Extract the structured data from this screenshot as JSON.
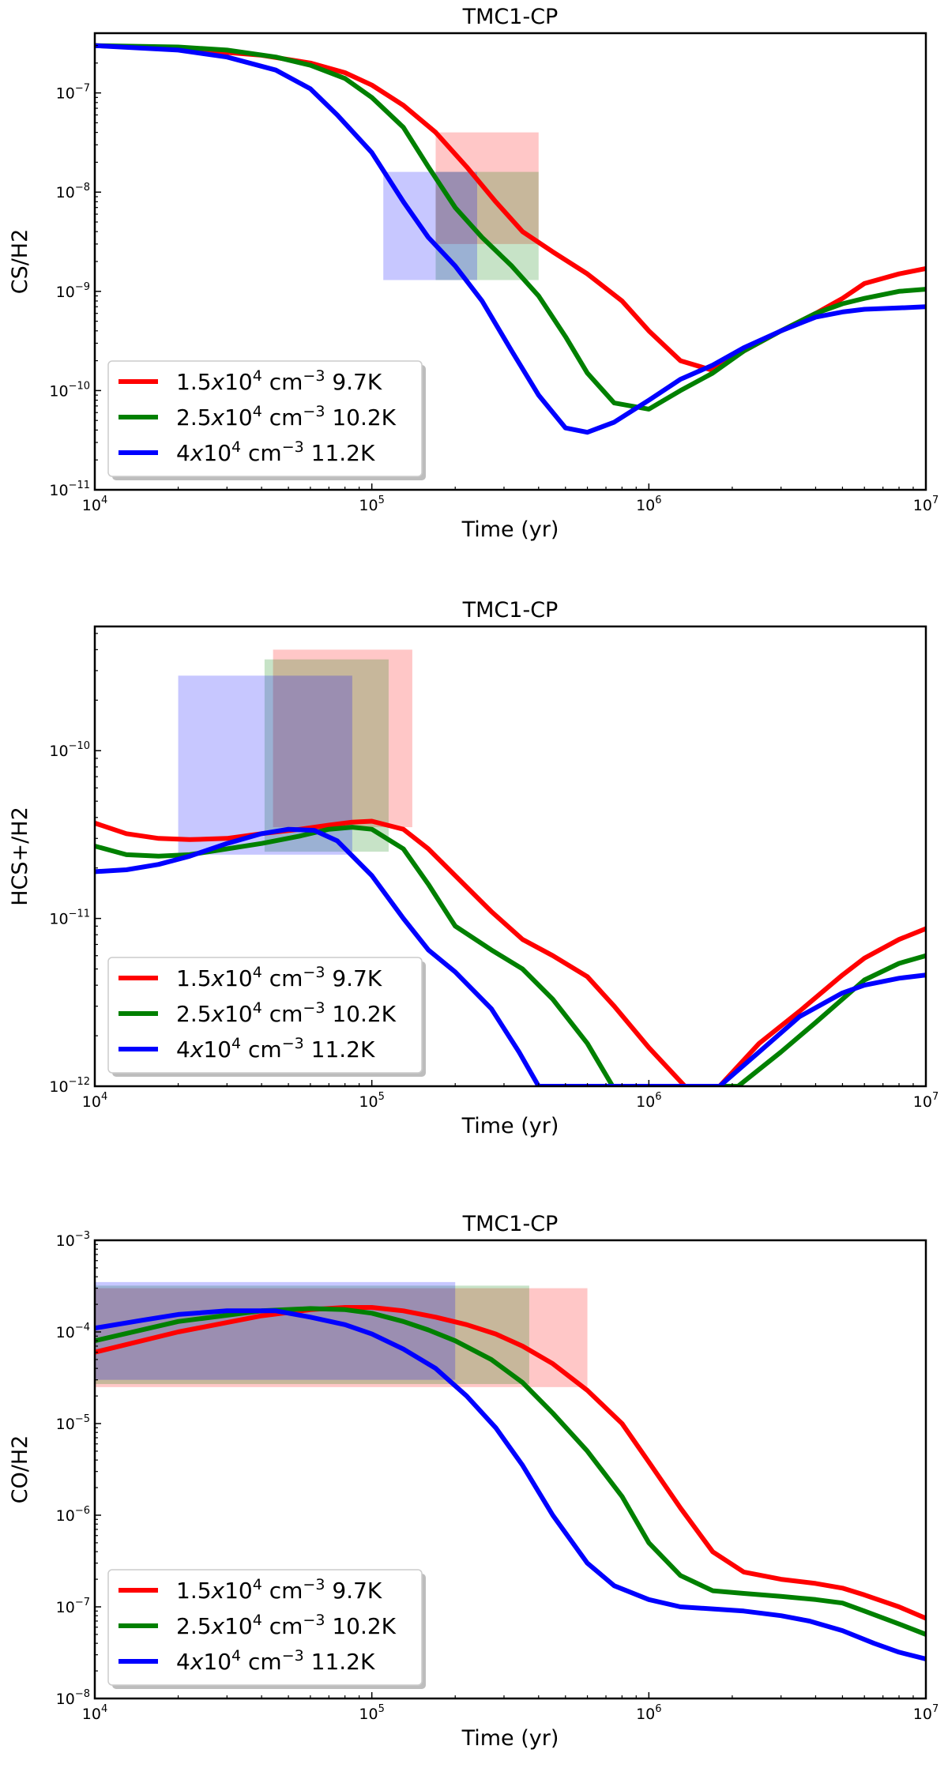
{
  "chart_data": [
    {
      "type": "line",
      "title": "TMC1-CP",
      "xlabel": "Time (yr)",
      "ylabel": "CS/H2",
      "xscale": "log",
      "yscale": "log",
      "xlim": [
        10000,
        10000000
      ],
      "ylim": [
        1e-11,
        4e-07
      ],
      "x_ticks": [
        {
          "base": "10",
          "exp": "4"
        },
        {
          "base": "10",
          "exp": "5"
        },
        {
          "base": "10",
          "exp": "6"
        },
        {
          "base": "10",
          "exp": "7"
        }
      ],
      "y_ticks": [
        {
          "v": 1e-11,
          "base": "10",
          "exp": "−11"
        },
        {
          "v": 1e-10,
          "base": "10",
          "exp": "−10"
        },
        {
          "v": 1e-09,
          "base": "10",
          "exp": "−9"
        },
        {
          "v": 1e-08,
          "base": "10",
          "exp": "−8"
        },
        {
          "v": 1e-07,
          "base": "10",
          "exp": "−7"
        }
      ],
      "legend_position": "lower-left",
      "grid": false,
      "series": [
        {
          "name": "1.5x10^4 cm^-3 9.7K",
          "color": "#ff0000",
          "x": [
            10000,
            20000,
            40000,
            60000,
            80000,
            100000,
            130000,
            170000,
            220000,
            280000,
            350000,
            450000,
            600000,
            800000,
            1000000,
            1300000,
            1700000,
            2200000,
            3000000,
            4000000,
            5000000,
            6000000,
            8000000,
            10000000
          ],
          "y": [
            3e-07,
            2.8e-07,
            2.4e-07,
            2e-07,
            1.6e-07,
            1.2e-07,
            7.5e-08,
            4e-08,
            1.8e-08,
            8e-09,
            4e-09,
            2.5e-09,
            1.5e-09,
            8e-10,
            4e-10,
            2e-10,
            1.6e-10,
            2.5e-10,
            4e-10,
            6e-10,
            8.5e-10,
            1.2e-09,
            1.5e-09,
            1.7e-09
          ]
        },
        {
          "name": "2.5x10^4 cm^-3 10.2K",
          "color": "#008000",
          "x": [
            10000,
            20000,
            30000,
            45000,
            60000,
            80000,
            100000,
            130000,
            160000,
            200000,
            250000,
            320000,
            400000,
            500000,
            600000,
            750000,
            1000000,
            1300000,
            1700000,
            2200000,
            3000000,
            4000000,
            5000000,
            6000000,
            8000000,
            10000000
          ],
          "y": [
            3e-07,
            2.9e-07,
            2.7e-07,
            2.3e-07,
            1.9e-07,
            1.4e-07,
            9e-08,
            4.5e-08,
            1.8e-08,
            7e-09,
            3.5e-09,
            1.8e-09,
            9e-10,
            3.5e-10,
            1.5e-10,
            7.5e-11,
            6.5e-11,
            1e-10,
            1.5e-10,
            2.5e-10,
            4e-10,
            6e-10,
            7.5e-10,
            8.5e-10,
            1e-09,
            1.05e-09
          ]
        },
        {
          "name": "4x10^4 cm^-3 11.2K",
          "color": "#0000ff",
          "x": [
            10000,
            20000,
            30000,
            45000,
            60000,
            75000,
            100000,
            130000,
            160000,
            200000,
            250000,
            320000,
            400000,
            500000,
            600000,
            750000,
            1000000,
            1300000,
            1700000,
            2200000,
            3000000,
            4000000,
            5000000,
            6000000,
            8000000,
            10000000
          ],
          "y": [
            3e-07,
            2.7e-07,
            2.3e-07,
            1.7e-07,
            1.1e-07,
            6e-08,
            2.5e-08,
            8e-09,
            3.5e-09,
            1.8e-09,
            8e-10,
            2.5e-10,
            9e-11,
            4.2e-11,
            3.8e-11,
            4.8e-11,
            8e-11,
            1.3e-10,
            1.8e-10,
            2.7e-10,
            4e-10,
            5.5e-10,
            6.2e-10,
            6.6e-10,
            6.8e-10,
            7e-10
          ]
        }
      ],
      "ranges": [
        {
          "series": "1.5x10^4 cm^-3 9.7K",
          "color": "#ff0000",
          "x": [
            170000,
            400000
          ],
          "y": [
            3e-09,
            4e-08
          ]
        },
        {
          "series": "2.5x10^4 cm^-3 10.2K",
          "color": "#008000",
          "x": [
            170000,
            400000
          ],
          "y": [
            1.3e-09,
            1.6e-08
          ]
        },
        {
          "series": "4x10^4 cm^-3 11.2K",
          "color": "#0000ff",
          "x": [
            110000,
            240000
          ],
          "y": [
            1.3e-09,
            1.6e-08
          ]
        }
      ]
    },
    {
      "type": "line",
      "title": "TMC1-CP",
      "xlabel": "Time (yr)",
      "ylabel": "HCS+/H2",
      "xscale": "log",
      "yscale": "log",
      "xlim": [
        10000,
        10000000
      ],
      "ylim": [
        1e-12,
        5.5e-10
      ],
      "x_ticks": [
        {
          "base": "10",
          "exp": "4"
        },
        {
          "base": "10",
          "exp": "5"
        },
        {
          "base": "10",
          "exp": "6"
        },
        {
          "base": "10",
          "exp": "7"
        }
      ],
      "y_ticks": [
        {
          "v": 1e-12,
          "base": "10",
          "exp": "−12"
        },
        {
          "v": 1e-11,
          "base": "10",
          "exp": "−11"
        },
        {
          "v": 1e-10,
          "base": "10",
          "exp": "−10"
        }
      ],
      "legend_position": "lower-left",
      "grid": false,
      "series": [
        {
          "name": "1.5x10^4 cm^-3 9.7K",
          "color": "#ff0000",
          "x": [
            10000,
            13000,
            17000,
            22000,
            30000,
            40000,
            55000,
            70000,
            85000,
            100000,
            130000,
            160000,
            200000,
            270000,
            350000,
            450000,
            600000,
            750000,
            1000000,
            1350000,
            1800000,
            2500000,
            3500000,
            5000000,
            6000000,
            8000000,
            10000000
          ],
          "y": [
            3.7e-11,
            3.2e-11,
            3e-11,
            2.95e-11,
            3e-11,
            3.2e-11,
            3.4e-11,
            3.6e-11,
            3.75e-11,
            3.8e-11,
            3.4e-11,
            2.6e-11,
            1.8e-11,
            1.1e-11,
            7.5e-12,
            6e-12,
            4.5e-12,
            3e-12,
            1.7e-12,
            1e-12,
            1e-12,
            1.8e-12,
            2.8e-12,
            4.6e-12,
            5.8e-12,
            7.5e-12,
            8.7e-12
          ]
        },
        {
          "name": "2.5x10^4 cm^-3 10.2K",
          "color": "#008000",
          "x": [
            10000,
            13000,
            17000,
            22000,
            30000,
            40000,
            55000,
            70000,
            85000,
            100000,
            130000,
            160000,
            200000,
            270000,
            350000,
            450000,
            600000,
            740000,
            2100000,
            3000000,
            4000000,
            6000000,
            8000000,
            10000000
          ],
          "y": [
            2.7e-11,
            2.4e-11,
            2.35e-11,
            2.4e-11,
            2.6e-11,
            2.8e-11,
            3.1e-11,
            3.4e-11,
            3.5e-11,
            3.4e-11,
            2.6e-11,
            1.6e-11,
            9e-12,
            6.5e-12,
            5e-12,
            3.3e-12,
            1.8e-12,
            1e-12,
            1e-12,
            1.6e-12,
            2.4e-12,
            4.3e-12,
            5.4e-12,
            6e-12
          ]
        },
        {
          "name": "4x10^4 cm^-3 11.2K",
          "color": "#0000ff",
          "x": [
            10000,
            13000,
            17000,
            22000,
            30000,
            40000,
            50000,
            62000,
            75000,
            100000,
            130000,
            160000,
            200000,
            270000,
            340000,
            400000,
            1800000,
            2500000,
            3500000,
            5000000,
            6000000,
            8000000,
            10000000
          ],
          "y": [
            1.9e-11,
            1.95e-11,
            2.1e-11,
            2.35e-11,
            2.8e-11,
            3.2e-11,
            3.4e-11,
            3.35e-11,
            2.9e-11,
            1.8e-11,
            1e-11,
            6.5e-12,
            4.8e-12,
            2.9e-12,
            1.6e-12,
            1e-12,
            1e-12,
            1.6e-12,
            2.6e-12,
            3.6e-12,
            4e-12,
            4.4e-12,
            4.6e-12
          ]
        }
      ],
      "ranges": [
        {
          "series": "1.5x10^4 cm^-3 9.7K",
          "color": "#ff0000",
          "x": [
            44000,
            140000
          ],
          "y": [
            3.5e-11,
            4e-10
          ]
        },
        {
          "series": "2.5x10^4 cm^-3 10.2K",
          "color": "#008000",
          "x": [
            41000,
            115000
          ],
          "y": [
            2.5e-11,
            3.5e-10
          ]
        },
        {
          "series": "4x10^4 cm^-3 11.2K",
          "color": "#0000ff",
          "x": [
            20000,
            85000
          ],
          "y": [
            2.4e-11,
            2.8e-10
          ]
        }
      ]
    },
    {
      "type": "line",
      "title": "TMC1-CP",
      "xlabel": "Time (yr)",
      "ylabel": "CO/H2",
      "xscale": "log",
      "yscale": "log",
      "xlim": [
        10000,
        10000000
      ],
      "ylim": [
        1e-08,
        0.001
      ],
      "x_ticks": [
        {
          "base": "10",
          "exp": "4"
        },
        {
          "base": "10",
          "exp": "5"
        },
        {
          "base": "10",
          "exp": "6"
        },
        {
          "base": "10",
          "exp": "7"
        }
      ],
      "y_ticks": [
        {
          "v": 1e-08,
          "base": "10",
          "exp": "−8"
        },
        {
          "v": 1e-07,
          "base": "10",
          "exp": "−7"
        },
        {
          "v": 1e-06,
          "base": "10",
          "exp": "−6"
        },
        {
          "v": 1e-05,
          "base": "10",
          "exp": "−5"
        },
        {
          "v": 0.0001,
          "base": "10",
          "exp": "−4"
        },
        {
          "v": 0.001,
          "base": "10",
          "exp": "−3"
        }
      ],
      "legend_position": "lower-left",
      "grid": false,
      "series": [
        {
          "name": "1.5x10^4 cm^-3 9.7K",
          "color": "#ff0000",
          "x": [
            10000,
            20000,
            40000,
            60000,
            80000,
            100000,
            130000,
            170000,
            220000,
            280000,
            350000,
            450000,
            600000,
            800000,
            1000000,
            1300000,
            1700000,
            2200000,
            3000000,
            4000000,
            5000000,
            6000000,
            8000000,
            10000000
          ],
          "y": [
            6e-05,
            0.0001,
            0.00015,
            0.000175,
            0.000185,
            0.000185,
            0.00017,
            0.000145,
            0.00012,
            9.5e-05,
            7e-05,
            4.5e-05,
            2.3e-05,
            1e-05,
            3.8e-06,
            1.2e-06,
            4e-07,
            2.4e-07,
            2e-07,
            1.8e-07,
            1.6e-07,
            1.35e-07,
            1e-07,
            7.5e-08
          ]
        },
        {
          "name": "2.5x10^4 cm^-3 10.2K",
          "color": "#008000",
          "x": [
            10000,
            20000,
            40000,
            60000,
            80000,
            100000,
            130000,
            160000,
            200000,
            270000,
            350000,
            450000,
            600000,
            800000,
            1000000,
            1300000,
            1700000,
            2200000,
            3000000,
            4000000,
            5000000,
            6000000,
            8000000,
            10000000
          ],
          "y": [
            8e-05,
            0.00013,
            0.00017,
            0.00018,
            0.000175,
            0.00016,
            0.00013,
            0.000105,
            8e-05,
            5e-05,
            2.8e-05,
            1.3e-05,
            5e-06,
            1.6e-06,
            5e-07,
            2.2e-07,
            1.5e-07,
            1.4e-07,
            1.3e-07,
            1.2e-07,
            1.1e-07,
            9e-08,
            6.5e-08,
            5e-08
          ]
        },
        {
          "name": "4x10^4 cm^-3 11.2K",
          "color": "#0000ff",
          "x": [
            10000,
            15000,
            20000,
            30000,
            45000,
            60000,
            80000,
            100000,
            130000,
            170000,
            220000,
            280000,
            350000,
            450000,
            600000,
            750000,
            1000000,
            1300000,
            1700000,
            2200000,
            3000000,
            3800000,
            5000000,
            6500000,
            8000000,
            10000000
          ],
          "y": [
            0.00011,
            0.000135,
            0.000155,
            0.00017,
            0.00017,
            0.000145,
            0.00012,
            9.5e-05,
            6.5e-05,
            4e-05,
            2e-05,
            9e-06,
            3.5e-06,
            1e-06,
            3e-07,
            1.7e-07,
            1.2e-07,
            1e-07,
            9.5e-08,
            9e-08,
            8e-08,
            7e-08,
            5.5e-08,
            4e-08,
            3.2e-08,
            2.7e-08
          ]
        }
      ],
      "ranges": [
        {
          "series": "1.5x10^4 cm^-3 9.7K",
          "color": "#ff0000",
          "x": [
            10000,
            600000
          ],
          "y": [
            2.5e-05,
            0.0003
          ]
        },
        {
          "series": "2.5x10^4 cm^-3 10.2K",
          "color": "#008000",
          "x": [
            10000,
            370000
          ],
          "y": [
            2.7e-05,
            0.00032
          ]
        },
        {
          "series": "4x10^4 cm^-3 11.2K",
          "color": "#0000ff",
          "x": [
            10000,
            200000
          ],
          "y": [
            3e-05,
            0.00035
          ]
        }
      ]
    }
  ],
  "legend": {
    "entries": [
      {
        "coef": "1.5",
        "x": "x",
        "ten": "10",
        "exp": "4",
        "unit": "cm",
        "unit_exp": "−3",
        "temp": "9.7K",
        "color": "#ff0000"
      },
      {
        "coef": "2.5",
        "x": "x",
        "ten": "10",
        "exp": "4",
        "unit": "cm",
        "unit_exp": "−3",
        "temp": "10.2K",
        "color": "#008000"
      },
      {
        "coef": "4",
        "x": "x",
        "ten": "10",
        "exp": "4",
        "unit": "cm",
        "unit_exp": "−3",
        "temp": "11.2K",
        "color": "#0000ff"
      }
    ]
  }
}
